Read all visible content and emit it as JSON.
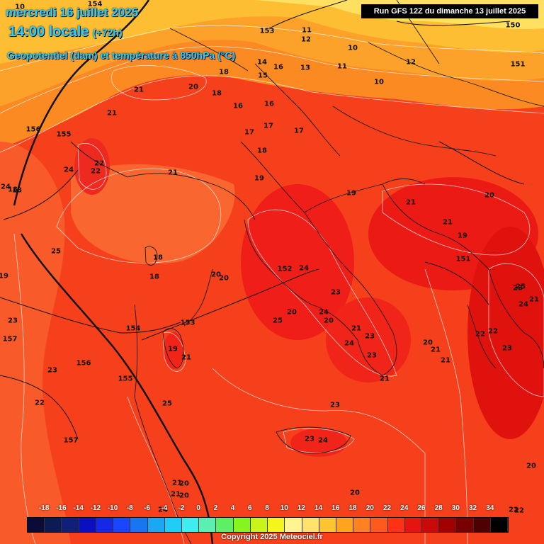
{
  "header": {
    "date_line": "mercredi 16 juillet 2025",
    "time_line": "14:00 locale",
    "lead_time": "(+72h)",
    "parameter": "Geopotentiel (dam) et température à 850hPa (°C)",
    "run_info": "Run GFS 12Z du dimanche 13 juillet 2025"
  },
  "temperature_labels": [
    "10",
    "11",
    "12",
    "10",
    "11",
    "10",
    "12",
    "13",
    "16",
    "15",
    "14",
    "18",
    "16",
    "18",
    "16",
    "17",
    "17",
    "17",
    "18",
    "21",
    "20",
    "21",
    "22",
    "22",
    "24",
    "21",
    "19",
    "19",
    "20",
    "21",
    "21",
    "19",
    "20",
    "20",
    "18",
    "18",
    "24",
    "24",
    "23",
    "24",
    "20",
    "20",
    "21",
    "23",
    "24",
    "20",
    "21",
    "23",
    "21",
    "21",
    "22",
    "22",
    "23",
    "23",
    "21",
    "20",
    "22",
    "23",
    "20",
    "20",
    "21",
    "24",
    "25",
    "24",
    "23",
    "23",
    "24",
    "25",
    "25",
    "23",
    "22",
    "19",
    "19",
    "21",
    "18",
    "18",
    "22",
    "21",
    "20",
    "25"
  ],
  "geopotential_labels": [
    "154",
    "153",
    "150",
    "151",
    "156",
    "155",
    "152",
    "151",
    "154",
    "153",
    "156",
    "155",
    "157",
    "157"
  ],
  "legend": {
    "values": [
      "-18",
      "-16",
      "-14",
      "-12",
      "-10",
      "-8",
      "-6",
      "-4",
      "-2",
      "0",
      "2",
      "4",
      "6",
      "8",
      "10",
      "12",
      "14",
      "16",
      "18",
      "20",
      "22",
      "24",
      "26",
      "28",
      "30",
      "32",
      "34"
    ],
    "colors": [
      "#0b0b3a",
      "#0c1a55",
      "#10207a",
      "#0a10c0",
      "#1428e6",
      "#1a46ff",
      "#1876f0",
      "#1aa8f5",
      "#22ccf8",
      "#40ecf0",
      "#5af0b4",
      "#5cf064",
      "#86f41e",
      "#c8f41e",
      "#f5f51e",
      "#fff590",
      "#ffe26c",
      "#fcc432",
      "#ffa41e",
      "#ff821e",
      "#ff5a1e",
      "#ff3216",
      "#e6140e",
      "#c80a0a",
      "#a00000",
      "#780000",
      "#500000",
      "#000000"
    ]
  },
  "copyright": "Copyright 2025 Meteociel.fr"
}
